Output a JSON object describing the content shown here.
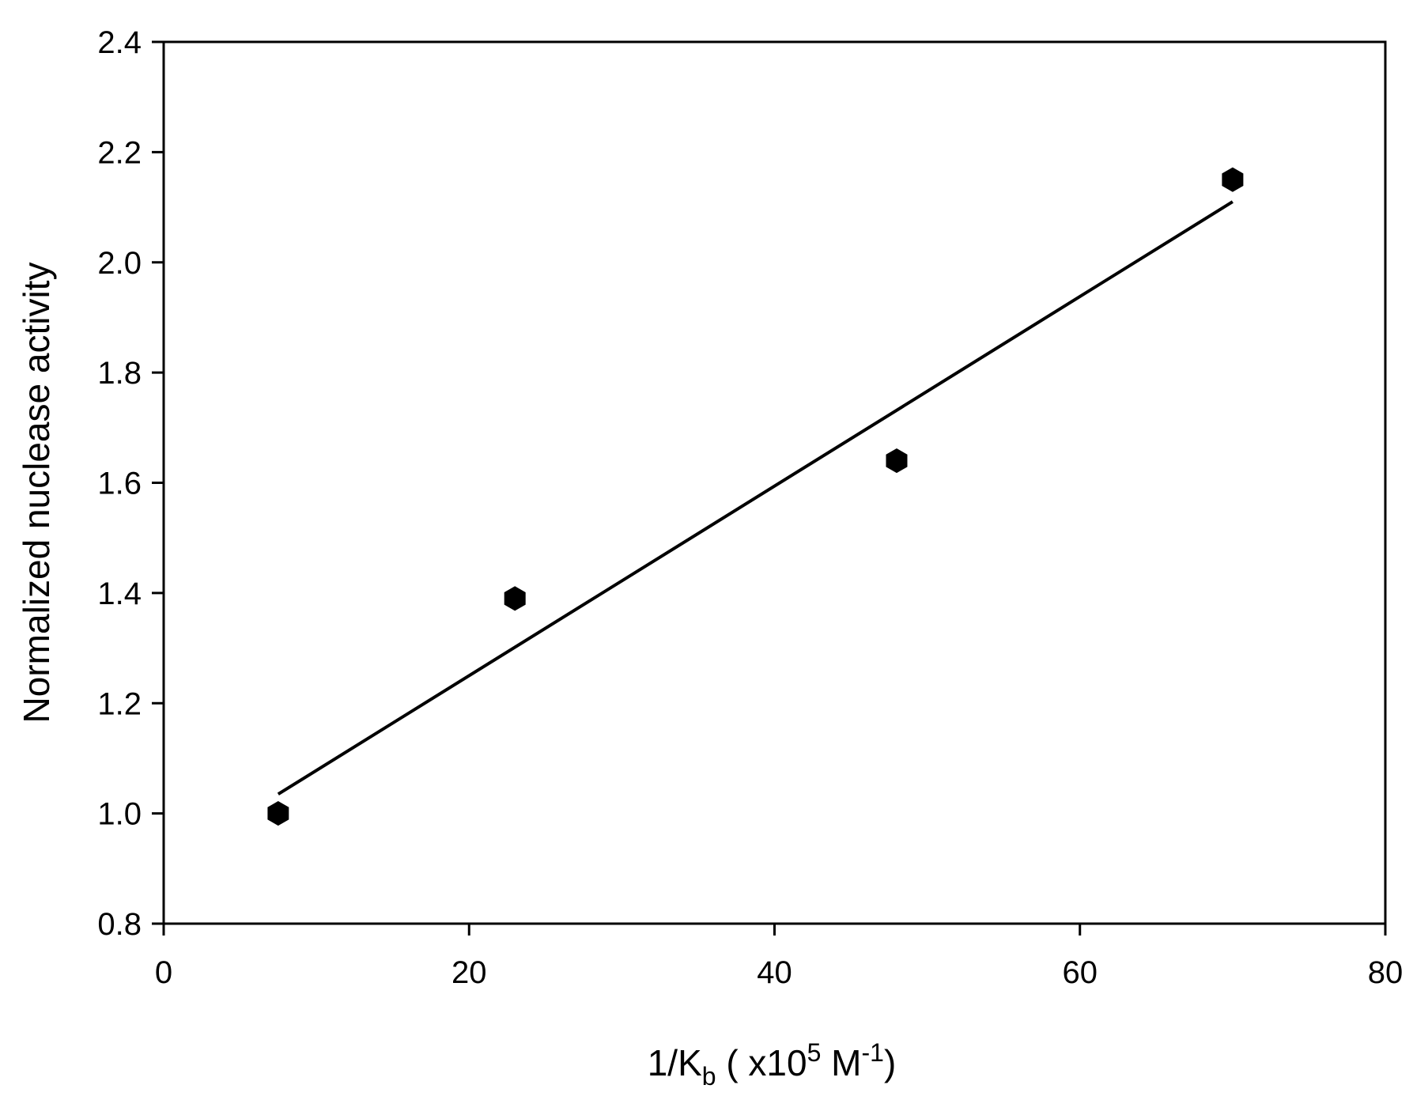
{
  "chart_data": {
    "type": "scatter",
    "title": "",
    "xlabel": {
      "base": "1/K",
      "base_sub": "b",
      "unit_open": " ( x10",
      "unit_sup": "5",
      "unit_mid": " M",
      "unit_sup2": "-1",
      "unit_close": ")"
    },
    "ylabel": "Normalized nuclease activity",
    "xlim": [
      0,
      80
    ],
    "ylim": [
      0.8,
      2.4
    ],
    "x_ticks": [
      0,
      20,
      40,
      60,
      80
    ],
    "x_tick_labels": [
      "0",
      "20",
      "40",
      "60",
      "80"
    ],
    "y_ticks": [
      0.8,
      1.0,
      1.2,
      1.4,
      1.6,
      1.8,
      2.0,
      2.2,
      2.4
    ],
    "y_tick_labels": [
      "0.8",
      "1.0",
      "1.2",
      "1.4",
      "1.6",
      "1.8",
      "2.0",
      "2.2",
      "2.4"
    ],
    "grid": false,
    "legend": "none",
    "series": [
      {
        "marker": "hexagon",
        "color": "#000000",
        "points": [
          {
            "x": 7.5,
            "y": 1.0
          },
          {
            "x": 23.0,
            "y": 1.39
          },
          {
            "x": 48.0,
            "y": 1.64
          },
          {
            "x": 70.0,
            "y": 2.15
          }
        ]
      }
    ],
    "fit_line": {
      "color": "#000000",
      "x_start": 7.5,
      "y_start": 1.035,
      "x_end": 70.0,
      "y_end": 2.11
    }
  }
}
